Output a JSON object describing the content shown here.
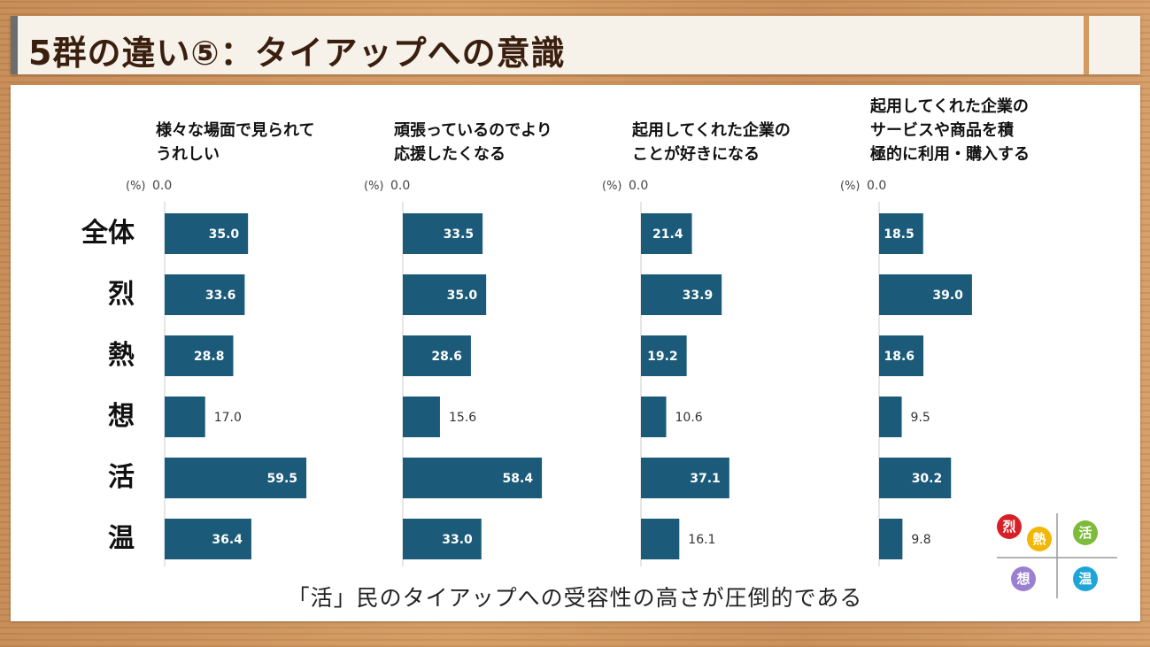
{
  "title": "5群の違い⑤：タイアップへの意識",
  "footer": "「活」民のタイアップへの受容性の高さが圧倒的である",
  "unit_label": "(%)",
  "zero_label": "0.0",
  "row_labels": [
    "全体",
    "烈",
    "熱",
    "想",
    "活",
    "温"
  ],
  "legend": {
    "items": [
      {
        "label": "烈",
        "color": "#d81f26"
      },
      {
        "label": "熱",
        "color": "#f2b705"
      },
      {
        "label": "活",
        "color": "#7dbb3a"
      },
      {
        "label": "想",
        "color": "#9b7fd1"
      },
      {
        "label": "温",
        "color": "#1ea5d8"
      }
    ]
  },
  "colors": {
    "bar": "#1b5a78",
    "bar_label_inside": "#ffffff",
    "bar_label_outside": "#333333",
    "axis": "#cccccc"
  },
  "chart_data": {
    "type": "bar",
    "orientation": "horizontal",
    "categories": [
      "全体",
      "烈",
      "熱",
      "想",
      "活",
      "温"
    ],
    "unit": "%",
    "xlim": [
      0,
      100
    ],
    "facets": [
      {
        "title": "様々な場面で見られて\nうれしい",
        "values": [
          35.0,
          33.6,
          28.8,
          17.0,
          59.5,
          36.4
        ],
        "labels": [
          "35.0",
          "33.6",
          "28.8",
          "17.0",
          "59.5",
          "36.4"
        ]
      },
      {
        "title": "頑張っているのでより\n応援したくなる",
        "values": [
          33.5,
          35.0,
          28.6,
          15.6,
          58.4,
          33.0
        ],
        "labels": [
          "33.5",
          "35.0",
          "28.6",
          "15.6",
          "58.4",
          "33.0"
        ]
      },
      {
        "title": "起用してくれた企業の\nことが好きになる",
        "values": [
          21.4,
          33.9,
          19.2,
          10.6,
          37.1,
          16.1
        ],
        "labels": [
          "21.4",
          "33.9",
          "19.2",
          "10.6",
          "37.1",
          "16.1"
        ]
      },
      {
        "title": "起用してくれた企業の\nサービスや商品を積\n極的に利用・購入する",
        "values": [
          18.5,
          39.0,
          18.6,
          9.5,
          30.2,
          9.8
        ],
        "labels": [
          "18.5",
          "39.0",
          "18.6",
          "9.5",
          "30.2",
          "9.8"
        ]
      }
    ]
  }
}
